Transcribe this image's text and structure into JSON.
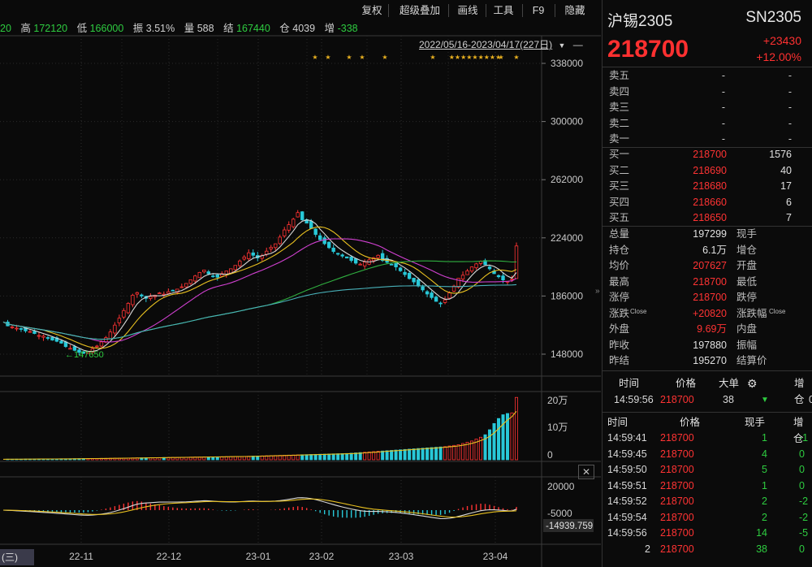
{
  "toolbar": {
    "restore_label": "复权",
    "overlay_label": "超级叠加",
    "draw_label": "画线",
    "tools_label": "工具",
    "f9_label": "F9",
    "hide_label": "隐藏"
  },
  "info_bar": {
    "open_tail": "20",
    "high_label": "高",
    "high_value": "172120",
    "low_label": "低",
    "low_value": "166000",
    "amp_label": "振",
    "amp_value": "3.51%",
    "vol_label": "量",
    "vol_value": "588",
    "settle_label": "结",
    "settle_value": "167440",
    "oi_label": "仓",
    "oi_value": "4039",
    "inc_label": "增",
    "inc_value": "-338"
  },
  "date_range": "2022/05/16-2023/04/17(227日)",
  "left_bottom_label": "(三)",
  "close_symbol": "✕",
  "chart_data": {
    "type": "candlestick",
    "y_ticks": [
      "338000",
      "300000",
      "262000",
      "224000",
      "186000",
      "148000"
    ],
    "ylim": [
      148000,
      338000
    ],
    "low_marker": "147650",
    "star_marks": [
      "★",
      "★",
      "★",
      "★",
      "★",
      "★",
      "★★★★★★★★★",
      "★",
      "★"
    ],
    "x_ticks": [
      "22-11",
      "22-12",
      "23-01",
      "23-02",
      "23-03",
      "23-04"
    ],
    "volume_ticks": [
      "20万",
      "10万",
      "0"
    ],
    "macd_ticks": [
      "20000",
      "-5000"
    ],
    "macd_value": "-14939.759",
    "close_series": [
      169000,
      166500,
      165800,
      165000,
      164500,
      163200,
      162800,
      161500,
      160200,
      159800,
      158500,
      157200,
      156400,
      155200,
      153000,
      151800,
      150500,
      149200,
      148600,
      149500,
      151600,
      153300,
      156000,
      158800,
      162500,
      167000,
      171500,
      176500,
      181200,
      186500,
      188200,
      186000,
      184500,
      185600,
      186500,
      188000,
      187200,
      188800,
      189600,
      190500,
      192000,
      194200,
      196600,
      199100,
      201400,
      203000,
      200600,
      199100,
      198300,
      200600,
      202300,
      203800,
      206000,
      208900,
      211500,
      214200,
      212600,
      210900,
      212400,
      215300,
      217800,
      220100,
      224500,
      229200,
      232600,
      236200,
      240500,
      235800,
      233600,
      230100,
      226200,
      222800,
      220200,
      217600,
      215100,
      213600,
      212100,
      210800,
      209200,
      207500,
      206800,
      208200,
      209600,
      211000,
      212600,
      209200,
      208000,
      206500,
      205000,
      202500,
      200000,
      197400,
      195200,
      192500,
      190000,
      187300,
      185000,
      182500,
      181000,
      183500,
      188000,
      192500,
      197600,
      199600,
      202400,
      205000,
      207000,
      208700,
      206500,
      203800,
      200600,
      198600,
      196500,
      195600,
      197200,
      218700
    ],
    "volume_series": [
      0.8,
      0.9,
      0.9,
      1.0,
      1.0,
      1.1,
      1.1,
      1.2,
      1.2,
      1.3,
      1.3,
      1.4,
      1.4,
      1.5,
      1.5,
      1.6,
      1.7,
      1.8,
      1.9,
      2.0,
      2.1,
      2.1,
      2.2,
      2.3,
      2.4,
      2.5,
      2.6,
      2.7,
      2.8,
      2.9,
      3.0,
      3.1,
      3.2,
      3.3,
      3.4,
      3.5,
      3.6,
      3.7,
      3.8,
      3.9,
      4.0,
      4.1,
      4.2,
      4.3,
      4.4,
      4.5,
      4.6,
      4.7,
      4.8,
      4.9,
      5.0,
      5.1,
      5.2,
      5.3,
      5.4,
      5.6,
      5.8,
      6.0,
      6.2,
      6.4,
      6.6,
      6.8,
      7.0,
      7.2,
      7.4,
      7.6,
      7.8,
      8.0,
      8.2,
      8.4,
      8.6,
      8.8,
      9.0,
      9.2,
      9.4,
      9.6,
      9.8,
      10.0,
      10.5,
      11.0,
      11.5,
      12.0,
      12.5,
      13.0,
      13.5,
      14.0,
      14.5,
      15.0,
      15.5,
      16.0,
      16.5,
      17.0,
      17.5,
      18.0,
      18.5,
      19.0,
      19.5,
      20.0,
      20.5,
      21.0,
      22.0,
      23.0,
      24.0,
      26.0,
      28.0,
      30.0,
      33.0,
      36.0,
      40.0,
      48.0,
      58.0,
      66.0,
      72.0,
      74.0,
      75.0,
      99.7
    ]
  },
  "quote": {
    "name": "沪锡2305",
    "code": "SN2305",
    "price": "218700",
    "change": "+23430",
    "change_pct": "+12.00%",
    "asks": [
      {
        "label": "卖五",
        "price": "-",
        "vol": "-"
      },
      {
        "label": "卖四",
        "price": "-",
        "vol": "-"
      },
      {
        "label": "卖三",
        "price": "-",
        "vol": "-"
      },
      {
        "label": "卖二",
        "price": "-",
        "vol": "-"
      },
      {
        "label": "卖一",
        "price": "-",
        "vol": "-"
      }
    ],
    "bids": [
      {
        "label": "买一",
        "price": "218700",
        "vol": "1576"
      },
      {
        "label": "买二",
        "price": "218690",
        "vol": "40"
      },
      {
        "label": "买三",
        "price": "218680",
        "vol": "17"
      },
      {
        "label": "买四",
        "price": "218660",
        "vol": "6"
      },
      {
        "label": "买五",
        "price": "218650",
        "vol": "7"
      }
    ],
    "stats": [
      {
        "l": "总量",
        "v": "197299",
        "l2": "现手",
        "v2": ""
      },
      {
        "l": "持仓",
        "v": "6.1万",
        "l2": "增仓",
        "v2": ""
      },
      {
        "l": "均价",
        "v": "207627",
        "l2": "开盘",
        "v2": ""
      },
      {
        "l": "最高",
        "v": "218700",
        "l2": "最低",
        "v2": ""
      },
      {
        "l": "涨停",
        "v": "218700",
        "l2": "跌停",
        "v2": ""
      },
      {
        "l": "涨跌",
        "sup": "Close",
        "v": "+20820",
        "l2": "涨跌幅",
        "sup2": "Close",
        "v2": ""
      },
      {
        "l": "外盘",
        "v": "9.69万",
        "l2": "内盘",
        "v2": ""
      },
      {
        "l": "昨收",
        "v": "197880",
        "l2": "振幅",
        "v2": ""
      },
      {
        "l": "昨结",
        "v": "195270",
        "l2": "结算价",
        "v2": ""
      }
    ],
    "big_header": {
      "time": "时间",
      "price": "价格",
      "big": "大单",
      "inc": "增仓"
    },
    "big_row": {
      "time": "14:59:56",
      "price": "218700",
      "big": "38",
      "inc": "0"
    },
    "ticks_header": {
      "time": "时间",
      "price": "价格",
      "vol": "现手",
      "inc": "增仓"
    },
    "ticks": [
      {
        "time": "14:59:41",
        "price": "218700",
        "vol": "1",
        "inc": "-1"
      },
      {
        "time": "14:59:45",
        "price": "218700",
        "vol": "4",
        "inc": "0"
      },
      {
        "time": "14:59:50",
        "price": "218700",
        "vol": "5",
        "inc": "0"
      },
      {
        "time": "14:59:51",
        "price": "218700",
        "vol": "1",
        "inc": "0"
      },
      {
        "time": "14:59:52",
        "price": "218700",
        "vol": "2",
        "inc": "-2"
      },
      {
        "time": "14:59:54",
        "price": "218700",
        "vol": "2",
        "inc": "-2"
      },
      {
        "time": "14:59:56",
        "price": "218700",
        "vol": "14",
        "inc": "-5"
      },
      {
        "time": "2",
        "price": "218700",
        "vol": "38",
        "inc": "0"
      }
    ]
  },
  "colors": {
    "up": "#ff3333",
    "down": "#2ecc40",
    "cyan": "#28c8d8",
    "gold": "#e8c020",
    "ma_magenta": "#d040d0",
    "ma_green": "#30b040",
    "ma_teal": "#48b0b8",
    "ma_white": "#d8d8d8"
  }
}
